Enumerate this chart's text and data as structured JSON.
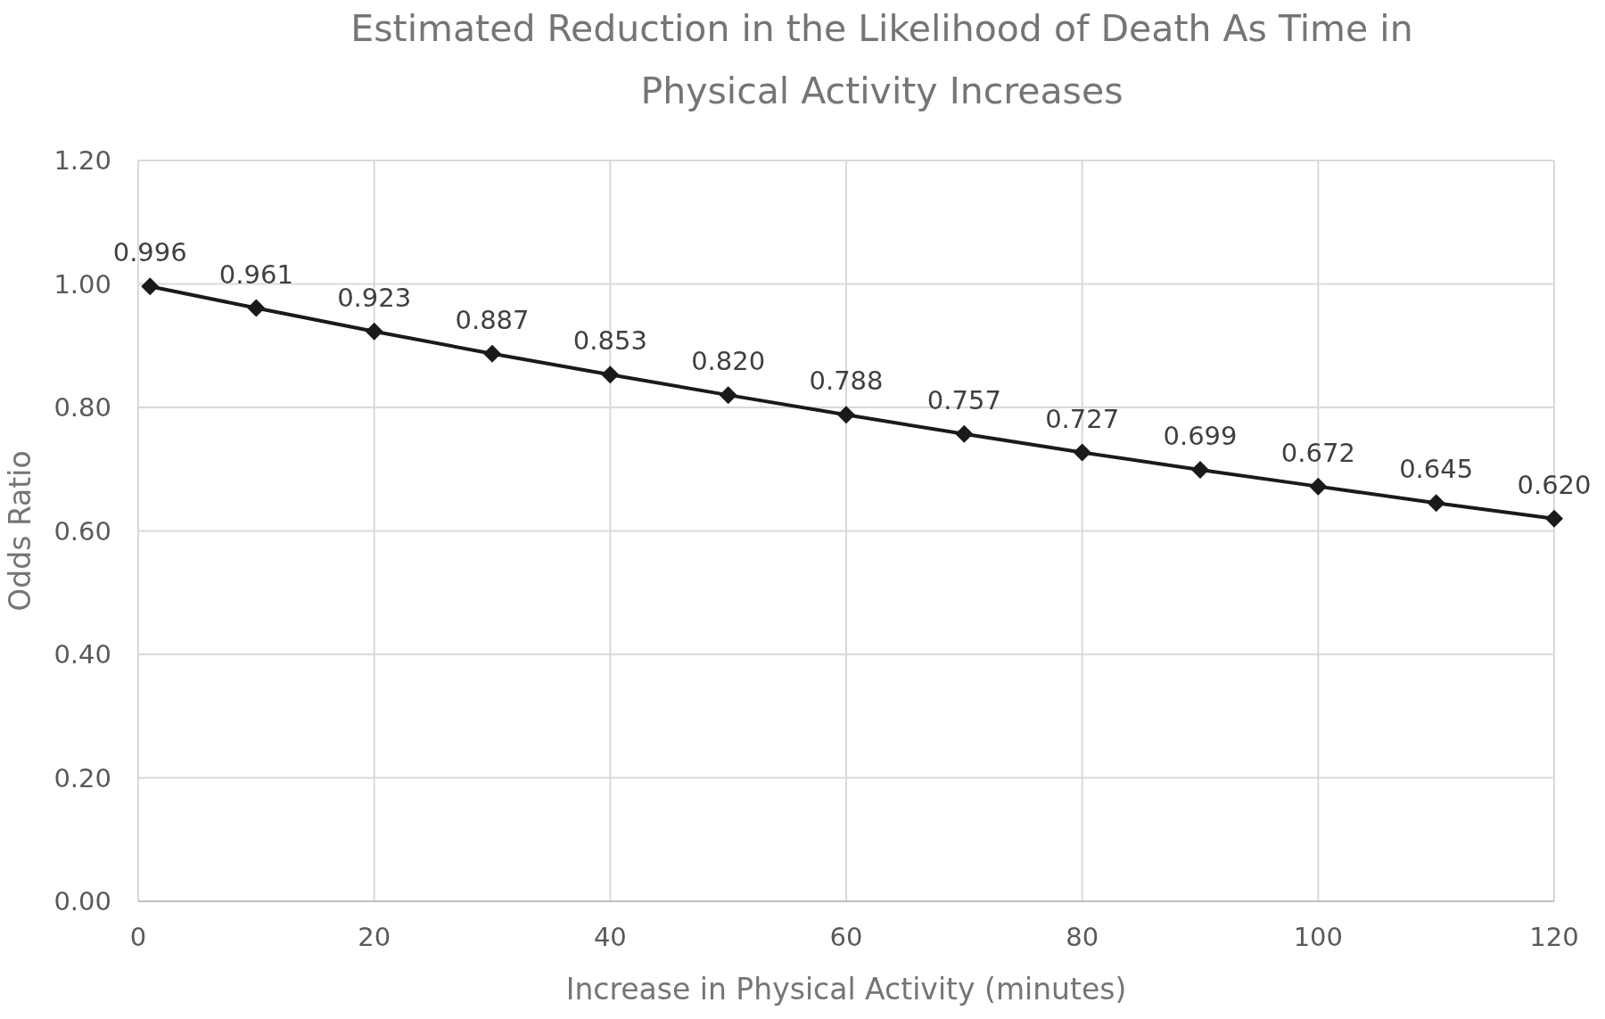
{
  "chart_data": {
    "type": "line",
    "title": "Estimated Reduction in the Likelihood of Death As Time in Physical Activity Increases",
    "xlabel": "Increase in Physical Activity (minutes)",
    "ylabel": "Odds Ratio",
    "x": [
      1,
      10,
      20,
      30,
      40,
      50,
      60,
      70,
      80,
      90,
      100,
      110,
      120
    ],
    "series": [
      {
        "color": "#1a1a1a",
        "values": [
          0.996,
          0.961,
          0.923,
          0.887,
          0.853,
          0.82,
          0.788,
          0.757,
          0.727,
          0.699,
          0.672,
          0.645,
          0.62
        ],
        "value_labels": [
          "0.996",
          "0.961",
          "0.923",
          "0.887",
          "0.853",
          "0.820",
          "0.788",
          "0.757",
          "0.727",
          "0.699",
          "0.672",
          "0.645",
          "0.620"
        ]
      }
    ],
    "xlim": [
      0,
      120
    ],
    "xticks": [
      0,
      20,
      40,
      60,
      80,
      100,
      120
    ],
    "ylim": [
      0,
      1.2
    ],
    "yticks": [
      {
        "value": 0,
        "label": "0.00"
      },
      {
        "value": 0.2,
        "label": "0.20"
      },
      {
        "value": 0.4,
        "label": "0.40"
      },
      {
        "value": 0.6,
        "label": "0.60"
      },
      {
        "value": 0.8,
        "label": "0.80"
      },
      {
        "value": 1,
        "label": "1.00"
      },
      {
        "value": 1.2,
        "label": "1.20"
      }
    ],
    "grid": true,
    "marker": "diamond",
    "line_style": "solid"
  }
}
